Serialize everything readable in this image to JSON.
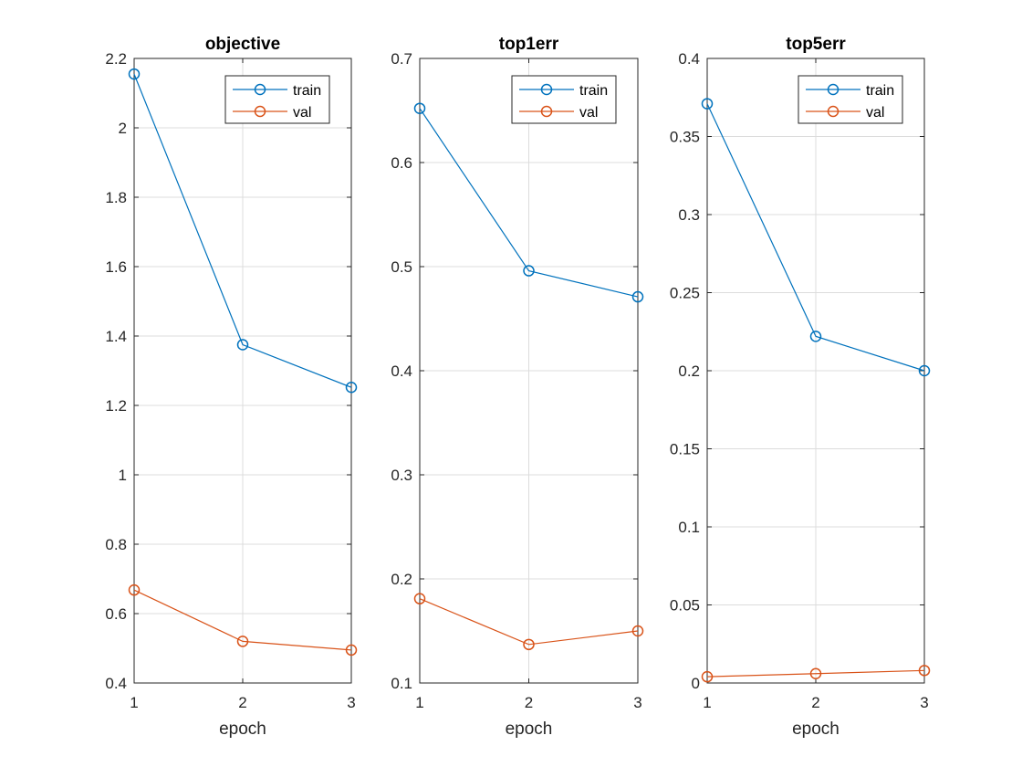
{
  "chart_data": [
    {
      "type": "line",
      "title": "objective",
      "xlabel": "epoch",
      "ylabel": "",
      "x": [
        1,
        2,
        3
      ],
      "xlim": [
        1,
        3
      ],
      "xticks": [
        1,
        2,
        3
      ],
      "ylim": [
        0.4,
        2.2
      ],
      "yticks": [
        0.4,
        0.6,
        0.8,
        1,
        1.2,
        1.4,
        1.6,
        1.8,
        2,
        2.2
      ],
      "grid": true,
      "legend": "top-right",
      "series": [
        {
          "name": "train",
          "color": "#0072bd",
          "values": [
            2.155,
            1.375,
            1.252
          ]
        },
        {
          "name": "val",
          "color": "#d95319",
          "values": [
            0.668,
            0.52,
            0.495
          ]
        }
      ]
    },
    {
      "type": "line",
      "title": "top1err",
      "xlabel": "epoch",
      "ylabel": "",
      "x": [
        1,
        2,
        3
      ],
      "xlim": [
        1,
        3
      ],
      "xticks": [
        1,
        2,
        3
      ],
      "ylim": [
        0.1,
        0.7
      ],
      "yticks": [
        0.1,
        0.2,
        0.3,
        0.4,
        0.5,
        0.6,
        0.7
      ],
      "grid": true,
      "legend": "top-right",
      "series": [
        {
          "name": "train",
          "color": "#0072bd",
          "values": [
            0.652,
            0.496,
            0.471
          ]
        },
        {
          "name": "val",
          "color": "#d95319",
          "values": [
            0.181,
            0.137,
            0.15
          ]
        }
      ]
    },
    {
      "type": "line",
      "title": "top5err",
      "xlabel": "epoch",
      "ylabel": "",
      "x": [
        1,
        2,
        3
      ],
      "xlim": [
        1,
        3
      ],
      "xticks": [
        1,
        2,
        3
      ],
      "ylim": [
        0,
        0.4
      ],
      "yticks": [
        0,
        0.05,
        0.1,
        0.15,
        0.2,
        0.25,
        0.3,
        0.35,
        0.4
      ],
      "grid": true,
      "legend": "top-right",
      "series": [
        {
          "name": "train",
          "color": "#0072bd",
          "values": [
            0.371,
            0.222,
            0.2
          ]
        },
        {
          "name": "val",
          "color": "#d95319",
          "values": [
            0.004,
            0.006,
            0.008
          ]
        }
      ]
    }
  ]
}
